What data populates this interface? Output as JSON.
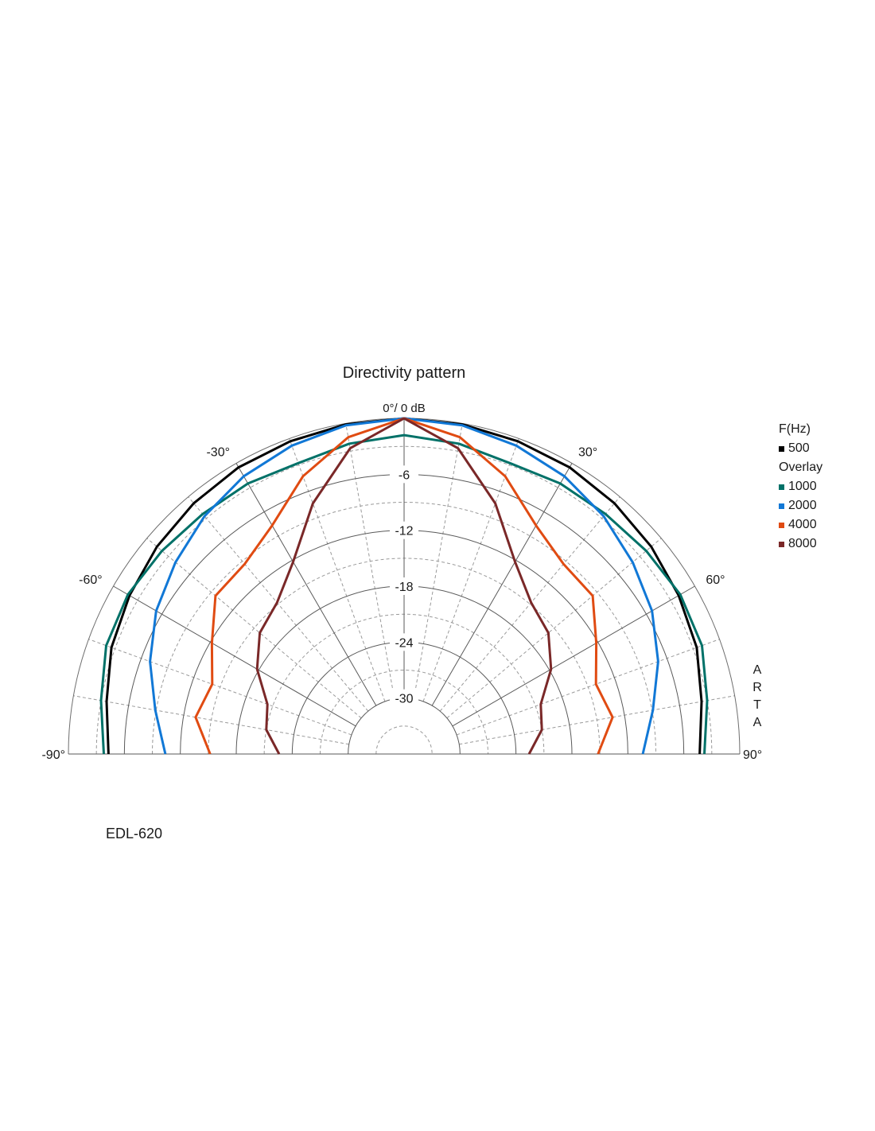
{
  "chart_data": {
    "type": "polar",
    "title": "Directivity pattern",
    "top_label": "0°/ 0 dB",
    "angle_range_deg": [
      -90,
      90
    ],
    "radial_range_db": [
      -36,
      0
    ],
    "radial_ticks": [
      "-6",
      "-12",
      "-18",
      "-24",
      "-30"
    ],
    "radial_tick_values": [
      -6,
      -12,
      -18,
      -24,
      -30
    ],
    "angle_labels": [
      {
        "angle": -90,
        "label": "-90°"
      },
      {
        "angle": -60,
        "label": "-60°"
      },
      {
        "angle": -30,
        "label": "-30°"
      },
      {
        "angle": 30,
        "label": "30°"
      },
      {
        "angle": 60,
        "label": "60°"
      },
      {
        "angle": 90,
        "label": "90°"
      }
    ],
    "grid": true,
    "legend_position": "right",
    "legend": {
      "header": "F(Hz)",
      "overlay_header": "Overlay"
    },
    "series": [
      {
        "name": "500",
        "color": "#000000",
        "angles": [
          -90,
          -80,
          -70,
          -60,
          -50,
          -40,
          -30,
          -20,
          -10,
          0,
          10,
          20,
          30,
          40,
          50,
          60,
          70,
          80,
          90
        ],
        "values": [
          -4.3,
          -3.6,
          -2.6,
          -2.0,
          -1.4,
          -0.9,
          -0.5,
          -0.3,
          -0.1,
          0.0,
          -0.1,
          -0.3,
          -0.5,
          -0.9,
          -1.4,
          -2.0,
          -2.6,
          -3.6,
          -4.3
        ]
      },
      {
        "name": "1000",
        "color": "#007168",
        "angles": [
          -90,
          -80,
          -70,
          -60,
          -50,
          -40,
          -30,
          -20,
          -10,
          0,
          10,
          20,
          30,
          40,
          50,
          60,
          70,
          80,
          90
        ],
        "values": [
          -3.8,
          -3.0,
          -2.0,
          -1.8,
          -2.1,
          -2.4,
          -2.5,
          -2.8,
          -2.2,
          -1.8,
          -2.2,
          -2.8,
          -2.5,
          -2.4,
          -2.1,
          -1.8,
          -2.0,
          -3.0,
          -3.8
        ]
      },
      {
        "name": "2000",
        "color": "#1178d6",
        "angles": [
          -90,
          -80,
          -70,
          -60,
          -50,
          -40,
          -30,
          -20,
          -10,
          0,
          10,
          20,
          30,
          40,
          50,
          60,
          70,
          80,
          90
        ],
        "values": [
          -10.4,
          -8.9,
          -7.0,
          -5.3,
          -4.0,
          -2.7,
          -1.6,
          -0.8,
          -0.2,
          0.0,
          -0.2,
          -0.8,
          -1.6,
          -2.7,
          -4.0,
          -5.3,
          -7.0,
          -8.9,
          -10.4
        ]
      },
      {
        "name": "4000",
        "color": "#e04b12",
        "angles": [
          -90,
          -80,
          -70,
          -60,
          -50,
          -40,
          -30,
          -20,
          -10,
          0,
          10,
          20,
          30,
          40,
          50,
          60,
          70,
          80,
          90
        ],
        "values": [
          -15.2,
          -13.3,
          -14.1,
          -12.2,
          -9.6,
          -9.4,
          -7.7,
          -4.3,
          -1.5,
          0.0,
          -1.5,
          -4.3,
          -7.7,
          -9.4,
          -9.6,
          -12.2,
          -14.1,
          -13.3,
          -15.2
        ]
      },
      {
        "name": "8000",
        "color": "#7a2828",
        "angles": [
          -90,
          -80,
          -70,
          -60,
          -50,
          -40,
          -30,
          -20,
          -10,
          0,
          10,
          20,
          30,
          40,
          50,
          60,
          70,
          80,
          90
        ],
        "values": [
          -22.6,
          -21.0,
          -20.4,
          -17.8,
          -15.8,
          -14.8,
          -12.2,
          -7.4,
          -2.7,
          0.0,
          -2.7,
          -7.4,
          -12.2,
          -14.8,
          -15.8,
          -17.8,
          -20.4,
          -21.0,
          -22.6
        ]
      }
    ]
  },
  "watermark": "ARTA",
  "footnote": "EDL-620"
}
